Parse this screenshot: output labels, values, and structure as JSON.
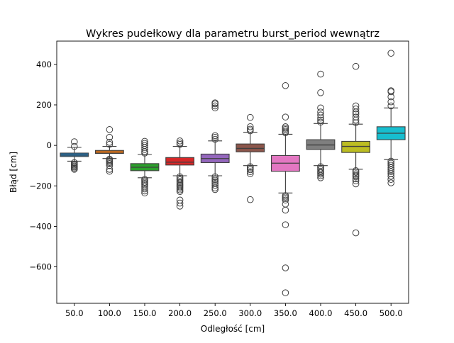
{
  "chart_data": {
    "type": "box",
    "title": "Wykres pudełkowy dla parametru burst_period wewnątrz",
    "xlabel": "Odległość [cm]",
    "ylabel": "Błąd [cm]",
    "ylim": [
      -780,
      515
    ],
    "yticks": [
      400,
      200,
      0,
      -200,
      -400,
      -600
    ],
    "ytick_labels": [
      "400",
      "200",
      "0",
      "−200",
      "−400",
      "−600"
    ],
    "categories": [
      "50.0",
      "100.0",
      "150.0",
      "200.0",
      "250.0",
      "300.0",
      "350.0",
      "400.0",
      "450.0",
      "500.0"
    ],
    "grid": false,
    "legend": "none",
    "boxes": [
      {
        "category": "50.0",
        "color": "#1f77b4",
        "whisker_low": -78,
        "q1": -55,
        "median": -48,
        "q3": -38,
        "whisker_high": -10,
        "outliers": [
          -85,
          -92,
          -97,
          -102,
          -107,
          -112,
          -118,
          -5,
          18
        ]
      },
      {
        "category": "100.0",
        "color": "#ff7f0e",
        "whisker_low": -65,
        "q1": -40,
        "median": -33,
        "q3": -25,
        "whisker_high": -5,
        "outliers": [
          -68,
          -73,
          -78,
          -84,
          -90,
          -100,
          -118,
          -128,
          5,
          15,
          40,
          78
        ]
      },
      {
        "category": "150.0",
        "color": "#2ca02c",
        "whisker_low": -160,
        "q1": -125,
        "median": -108,
        "q3": -90,
        "whisker_high": -45,
        "outliers": [
          -168,
          -175,
          -182,
          -188,
          -195,
          -205,
          -215,
          -225,
          -235,
          -38,
          -30,
          -20,
          -10,
          0,
          10,
          20
        ]
      },
      {
        "category": "200.0",
        "color": "#d62728",
        "whisker_low": -150,
        "q1": -97,
        "median": -83,
        "q3": -60,
        "whisker_high": -5,
        "outliers": [
          -155,
          -162,
          -170,
          -178,
          -185,
          -192,
          -198,
          -205,
          -212,
          -220,
          -228,
          -270,
          -285,
          -300,
          5,
          12,
          22
        ]
      },
      {
        "category": "250.0",
        "color": "#9467bd",
        "whisker_low": -150,
        "q1": -85,
        "median": -65,
        "q3": -43,
        "whisker_high": 22,
        "outliers": [
          -155,
          -165,
          -172,
          -180,
          -188,
          -198,
          -210,
          -218,
          30,
          40,
          48,
          185,
          195,
          205,
          210
        ]
      },
      {
        "category": "300.0",
        "color": "#8c564b",
        "whisker_low": -100,
        "q1": -32,
        "median": -15,
        "q3": 7,
        "whisker_high": 65,
        "outliers": [
          -105,
          -112,
          -120,
          -130,
          -140,
          -268,
          72,
          80,
          92,
          138
        ]
      },
      {
        "category": "350.0",
        "color": "#e377c2",
        "whisker_low": -235,
        "q1": -128,
        "median": -88,
        "q3": -50,
        "whisker_high": 55,
        "outliers": [
          -248,
          -255,
          -262,
          -270,
          -290,
          -320,
          -392,
          -605,
          -728,
          62,
          70,
          78,
          85,
          92,
          140,
          295
        ]
      },
      {
        "category": "400.0",
        "color": "#7f7f7f",
        "whisker_low": -100,
        "q1": -20,
        "median": 2,
        "q3": 28,
        "whisker_high": 108,
        "outliers": [
          -105,
          -112,
          -120,
          -128,
          -135,
          -142,
          -150,
          -160,
          115,
          125,
          135,
          150,
          165,
          185,
          260,
          352
        ]
      },
      {
        "category": "450.0",
        "color": "#bcbd22",
        "whisker_low": -118,
        "q1": -35,
        "median": -5,
        "q3": 20,
        "whisker_high": 105,
        "outliers": [
          -125,
          -132,
          -140,
          -148,
          -155,
          -165,
          -175,
          -190,
          -432,
          112,
          125,
          140,
          155,
          165,
          180,
          195,
          390
        ]
      },
      {
        "category": "500.0",
        "color": "#17becf",
        "whisker_low": -70,
        "q1": 28,
        "median": 60,
        "q3": 92,
        "whisker_high": 185,
        "outliers": [
          -78,
          -88,
          -98,
          -110,
          -120,
          -130,
          -140,
          -152,
          -168,
          -185,
          195,
          215,
          240,
          265,
          270,
          455
        ]
      }
    ]
  }
}
